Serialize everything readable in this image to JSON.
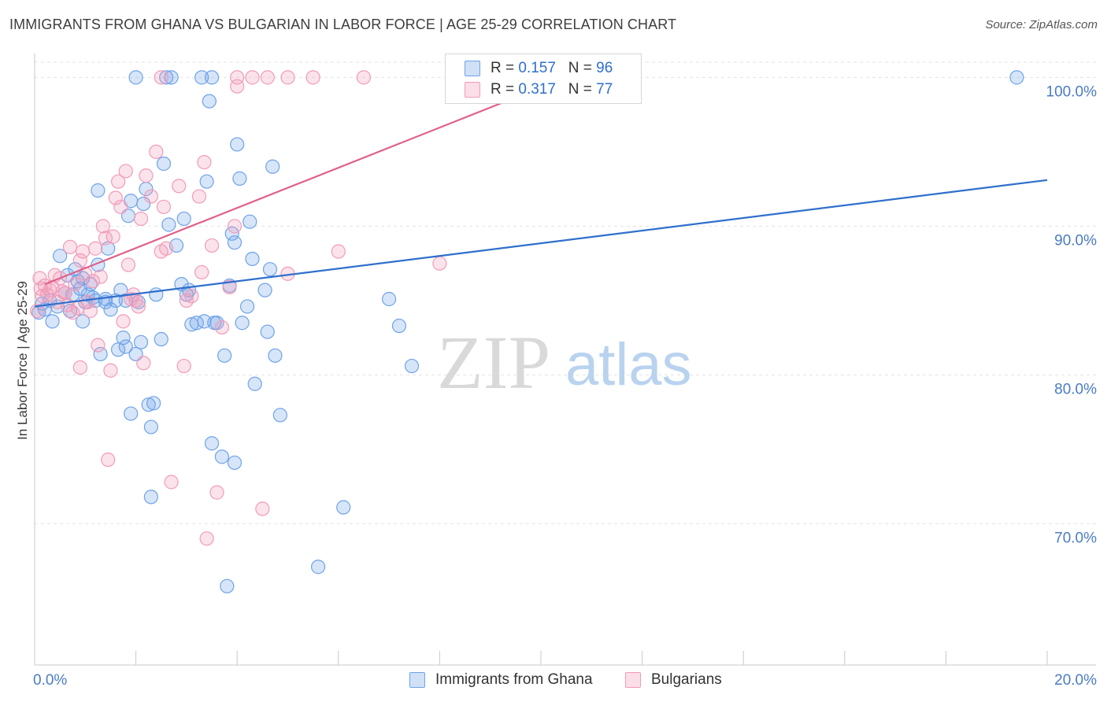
{
  "chart_data": {
    "type": "scatter",
    "title": "IMMIGRANTS FROM GHANA VS BULGARIAN IN LABOR FORCE | AGE 25-29 CORRELATION CHART",
    "source": "Source: ZipAtlas.com",
    "xlabel": "",
    "ylabel": "In Labor Force | Age 25-29",
    "xlim": [
      0,
      20
    ],
    "ylim": [
      60.5,
      101.5
    ],
    "x_ticks": [
      0,
      2,
      4,
      6,
      8,
      10,
      12,
      14,
      16,
      18,
      20
    ],
    "x_tick_labels": {
      "0": "0.0%",
      "20": "20.0%"
    },
    "y_ticks": [
      70,
      80,
      90,
      100
    ],
    "y_tick_labels": [
      "70.0%",
      "80.0%",
      "90.0%",
      "100.0%"
    ],
    "grid": true,
    "legend_position": "top-center",
    "watermark": "ZIPatlas",
    "series": [
      {
        "name": "Immigrants from Ghana",
        "color": "#6fa3e8",
        "line_color": "#2f6fcc",
        "R": "0.157",
        "N": "96",
        "trend": {
          "x": [
            0,
            20
          ],
          "y": [
            84.6,
            93.1
          ]
        },
        "points": [
          [
            0.08,
            84.2
          ],
          [
            0.15,
            84.8
          ],
          [
            0.2,
            84.4
          ],
          [
            0.3,
            85.0
          ],
          [
            0.35,
            83.6
          ],
          [
            0.45,
            84.6
          ],
          [
            0.5,
            88.0
          ],
          [
            0.6,
            85.5
          ],
          [
            0.65,
            86.7
          ],
          [
            0.7,
            84.3
          ],
          [
            0.75,
            85.4
          ],
          [
            0.8,
            87.1
          ],
          [
            0.85,
            86.3
          ],
          [
            0.9,
            85.8
          ],
          [
            0.95,
            86.5
          ],
          [
            0.95,
            83.6
          ],
          [
            1.0,
            84.9
          ],
          [
            1.05,
            85.4
          ],
          [
            1.1,
            86.1
          ],
          [
            1.15,
            85.2
          ],
          [
            1.2,
            85.0
          ],
          [
            1.25,
            87.4
          ],
          [
            1.25,
            92.4
          ],
          [
            1.3,
            81.4
          ],
          [
            1.4,
            85.1
          ],
          [
            1.4,
            84.9
          ],
          [
            1.45,
            88.5
          ],
          [
            1.5,
            84.4
          ],
          [
            1.6,
            85.0
          ],
          [
            1.65,
            81.7
          ],
          [
            1.7,
            85.7
          ],
          [
            1.75,
            82.5
          ],
          [
            1.8,
            81.9
          ],
          [
            1.8,
            85.0
          ],
          [
            1.85,
            90.7
          ],
          [
            1.9,
            91.7
          ],
          [
            1.9,
            77.4
          ],
          [
            2.0,
            81.4
          ],
          [
            2.05,
            84.9
          ],
          [
            2.1,
            82.2
          ],
          [
            2.15,
            91.5
          ],
          [
            2.2,
            92.5
          ],
          [
            2.25,
            78.0
          ],
          [
            2.3,
            71.8
          ],
          [
            2.3,
            76.5
          ],
          [
            2.35,
            78.1
          ],
          [
            2.4,
            85.4
          ],
          [
            2.5,
            82.4
          ],
          [
            2.55,
            94.2
          ],
          [
            2.65,
            90.1
          ],
          [
            2.8,
            88.7
          ],
          [
            2.9,
            86.1
          ],
          [
            2.95,
            90.5
          ],
          [
            3.0,
            85.4
          ],
          [
            3.05,
            85.7
          ],
          [
            3.1,
            83.4
          ],
          [
            3.2,
            83.5
          ],
          [
            3.35,
            83.6
          ],
          [
            3.4,
            93.0
          ],
          [
            3.45,
            98.4
          ],
          [
            3.5,
            75.4
          ],
          [
            3.55,
            83.5
          ],
          [
            3.6,
            83.5
          ],
          [
            3.7,
            74.5
          ],
          [
            3.75,
            81.3
          ],
          [
            3.8,
            65.8
          ],
          [
            3.85,
            86.0
          ],
          [
            3.9,
            89.5
          ],
          [
            3.95,
            74.1
          ],
          [
            3.95,
            88.9
          ],
          [
            4.0,
            95.5
          ],
          [
            4.05,
            93.2
          ],
          [
            4.1,
            83.5
          ],
          [
            4.2,
            84.6
          ],
          [
            4.25,
            90.3
          ],
          [
            4.3,
            87.8
          ],
          [
            4.35,
            79.4
          ],
          [
            4.55,
            85.7
          ],
          [
            4.6,
            82.9
          ],
          [
            4.65,
            87.1
          ],
          [
            4.7,
            94.0
          ],
          [
            4.75,
            81.3
          ],
          [
            4.85,
            77.3
          ],
          [
            5.6,
            67.1
          ],
          [
            6.1,
            71.1
          ],
          [
            7.0,
            85.1
          ],
          [
            7.2,
            83.3
          ],
          [
            7.45,
            80.6
          ],
          [
            2.0,
            100
          ],
          [
            2.6,
            100
          ],
          [
            2.7,
            100
          ],
          [
            3.3,
            100
          ],
          [
            3.5,
            100
          ],
          [
            19.4,
            100
          ]
        ]
      },
      {
        "name": "Bulgarians",
        "color": "#f29bb8",
        "line_color": "#e0608a",
        "R": "0.317",
        "N": "77",
        "trend": {
          "x": [
            0.2,
            10.5
          ],
          "y": [
            86.1,
            100.0
          ]
        },
        "points": [
          [
            0.05,
            84.3
          ],
          [
            0.1,
            86.5
          ],
          [
            0.12,
            85.8
          ],
          [
            0.15,
            85.3
          ],
          [
            0.2,
            86.0
          ],
          [
            0.25,
            85.4
          ],
          [
            0.3,
            85.7
          ],
          [
            0.35,
            85.9
          ],
          [
            0.4,
            86.7
          ],
          [
            0.45,
            84.9
          ],
          [
            0.5,
            86.5
          ],
          [
            0.55,
            85.6
          ],
          [
            0.6,
            85.5
          ],
          [
            0.65,
            84.7
          ],
          [
            0.7,
            88.6
          ],
          [
            0.75,
            84.2
          ],
          [
            0.8,
            86.1
          ],
          [
            0.85,
            84.5
          ],
          [
            0.9,
            87.7
          ],
          [
            0.9,
            80.5
          ],
          [
            0.95,
            88.3
          ],
          [
            1.0,
            86.8
          ],
          [
            1.05,
            84.9
          ],
          [
            1.1,
            84.3
          ],
          [
            1.15,
            86.3
          ],
          [
            1.2,
            88.5
          ],
          [
            1.25,
            82.0
          ],
          [
            1.3,
            86.6
          ],
          [
            1.35,
            90.0
          ],
          [
            1.4,
            89.2
          ],
          [
            1.45,
            74.3
          ],
          [
            1.5,
            80.3
          ],
          [
            1.55,
            89.3
          ],
          [
            1.6,
            91.9
          ],
          [
            1.65,
            93.0
          ],
          [
            1.7,
            91.3
          ],
          [
            1.75,
            83.6
          ],
          [
            1.8,
            93.7
          ],
          [
            1.85,
            87.4
          ],
          [
            1.9,
            85.1
          ],
          [
            1.95,
            85.4
          ],
          [
            2.0,
            85.0
          ],
          [
            2.05,
            84.6
          ],
          [
            2.1,
            90.5
          ],
          [
            2.15,
            80.8
          ],
          [
            2.2,
            93.4
          ],
          [
            2.3,
            92.0
          ],
          [
            2.4,
            95.0
          ],
          [
            2.5,
            88.3
          ],
          [
            2.55,
            91.3
          ],
          [
            2.6,
            88.5
          ],
          [
            2.7,
            72.8
          ],
          [
            2.85,
            92.7
          ],
          [
            2.95,
            80.6
          ],
          [
            3.0,
            85.0
          ],
          [
            3.1,
            85.3
          ],
          [
            3.25,
            92.0
          ],
          [
            3.3,
            86.9
          ],
          [
            3.35,
            94.3
          ],
          [
            3.4,
            69.0
          ],
          [
            3.5,
            88.7
          ],
          [
            3.6,
            72.1
          ],
          [
            3.7,
            83.2
          ],
          [
            3.85,
            85.9
          ],
          [
            3.95,
            90.0
          ],
          [
            4.0,
            99.4
          ],
          [
            4.5,
            71.0
          ],
          [
            5.0,
            86.8
          ],
          [
            6.0,
            88.3
          ],
          [
            8.0,
            87.5
          ],
          [
            2.5,
            100
          ],
          [
            4.0,
            100
          ],
          [
            4.3,
            100
          ],
          [
            4.6,
            100
          ],
          [
            5.0,
            100
          ],
          [
            5.5,
            100
          ],
          [
            6.5,
            100
          ]
        ]
      }
    ]
  }
}
